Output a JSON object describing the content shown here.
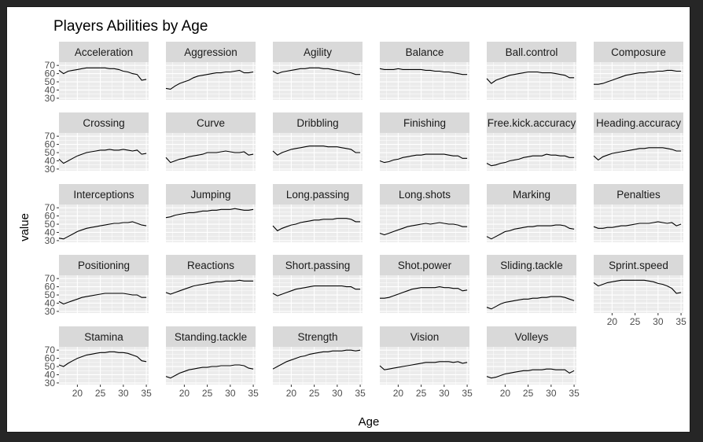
{
  "chart_data": {
    "type": "line",
    "title": "Players Abilities by Age",
    "xlabel": "Age",
    "ylabel": "value",
    "xlim": [
      16,
      35.5
    ],
    "ylim": [
      28,
      74
    ],
    "x_ticks": [
      20,
      25,
      30,
      35
    ],
    "y_ticks": [
      30,
      40,
      50,
      60,
      70
    ],
    "grid": true,
    "x": [
      16,
      17,
      18,
      19,
      20,
      21,
      22,
      23,
      24,
      25,
      26,
      27,
      28,
      29,
      30,
      31,
      32,
      33,
      34,
      35
    ],
    "facets": [
      {
        "name": "Acceleration",
        "values": [
          64,
          60,
          63,
          64,
          65,
          66,
          67,
          67,
          67,
          67,
          67,
          66,
          66,
          65,
          63,
          62,
          60,
          59,
          52,
          53
        ]
      },
      {
        "name": "Aggression",
        "values": [
          42,
          41,
          45,
          48,
          50,
          52,
          55,
          57,
          58,
          59,
          60,
          61,
          61,
          62,
          62,
          63,
          64,
          61,
          61,
          62
        ]
      },
      {
        "name": "Agility",
        "values": [
          63,
          60,
          62,
          63,
          64,
          65,
          66,
          66,
          67,
          67,
          67,
          66,
          66,
          65,
          64,
          63,
          62,
          61,
          59,
          59
        ]
      },
      {
        "name": "Balance",
        "values": [
          66,
          65,
          65,
          65,
          66,
          65,
          65,
          65,
          65,
          65,
          64,
          64,
          63,
          63,
          62,
          62,
          61,
          60,
          59,
          59
        ]
      },
      {
        "name": "Ball.control",
        "values": [
          54,
          48,
          52,
          54,
          56,
          58,
          59,
          60,
          61,
          62,
          62,
          62,
          61,
          61,
          61,
          60,
          59,
          58,
          55,
          55
        ]
      },
      {
        "name": "Composure",
        "values": [
          47,
          47,
          48,
          50,
          52,
          54,
          56,
          58,
          59,
          60,
          61,
          61,
          62,
          62,
          63,
          63,
          64,
          64,
          63,
          63
        ]
      },
      {
        "name": "Crossing",
        "values": [
          42,
          37,
          40,
          43,
          46,
          48,
          50,
          51,
          52,
          53,
          53,
          54,
          53,
          53,
          54,
          53,
          52,
          53,
          48,
          49
        ]
      },
      {
        "name": "Curve",
        "values": [
          44,
          38,
          40,
          42,
          43,
          45,
          46,
          47,
          48,
          50,
          50,
          50,
          51,
          52,
          51,
          50,
          50,
          51,
          47,
          48
        ]
      },
      {
        "name": "Dribbling",
        "values": [
          52,
          47,
          50,
          52,
          54,
          55,
          56,
          57,
          58,
          58,
          58,
          58,
          57,
          57,
          57,
          56,
          55,
          54,
          50,
          50
        ]
      },
      {
        "name": "Finishing",
        "values": [
          40,
          38,
          39,
          41,
          42,
          44,
          45,
          46,
          47,
          47,
          48,
          48,
          48,
          48,
          48,
          47,
          46,
          46,
          43,
          43
        ]
      },
      {
        "name": "Free.kick.accuracy",
        "values": [
          37,
          34,
          35,
          37,
          38,
          40,
          41,
          42,
          44,
          45,
          46,
          46,
          46,
          48,
          47,
          47,
          46,
          46,
          44,
          44
        ]
      },
      {
        "name": "Heading.accuracy",
        "values": [
          46,
          41,
          45,
          47,
          49,
          50,
          51,
          52,
          53,
          54,
          55,
          55,
          56,
          56,
          56,
          56,
          55,
          54,
          52,
          52
        ]
      },
      {
        "name": "Interceptions",
        "values": [
          33,
          32,
          35,
          38,
          41,
          43,
          45,
          46,
          47,
          48,
          49,
          50,
          51,
          51,
          52,
          52,
          53,
          51,
          49,
          48
        ]
      },
      {
        "name": "Jumping",
        "values": [
          58,
          59,
          61,
          62,
          63,
          64,
          64,
          65,
          66,
          66,
          67,
          67,
          68,
          68,
          68,
          69,
          68,
          67,
          67,
          68
        ]
      },
      {
        "name": "Long.passing",
        "values": [
          48,
          42,
          45,
          47,
          49,
          50,
          52,
          53,
          54,
          55,
          55,
          56,
          56,
          56,
          57,
          57,
          57,
          56,
          53,
          53
        ]
      },
      {
        "name": "Long.shots",
        "values": [
          39,
          37,
          39,
          41,
          43,
          45,
          47,
          48,
          49,
          50,
          51,
          50,
          51,
          52,
          51,
          50,
          50,
          49,
          47,
          47
        ]
      },
      {
        "name": "Marking",
        "values": [
          35,
          32,
          35,
          38,
          41,
          42,
          44,
          45,
          46,
          47,
          47,
          48,
          48,
          48,
          48,
          49,
          49,
          48,
          45,
          44
        ]
      },
      {
        "name": "Penalties",
        "values": [
          47,
          45,
          45,
          46,
          46,
          47,
          48,
          48,
          49,
          50,
          51,
          51,
          51,
          52,
          53,
          52,
          51,
          52,
          48,
          50
        ]
      },
      {
        "name": "Positioning",
        "values": [
          42,
          39,
          41,
          43,
          45,
          47,
          48,
          49,
          50,
          51,
          52,
          52,
          52,
          52,
          52,
          51,
          50,
          50,
          47,
          47
        ]
      },
      {
        "name": "Reactions",
        "values": [
          53,
          51,
          53,
          55,
          57,
          59,
          61,
          62,
          63,
          64,
          65,
          66,
          66,
          67,
          67,
          67,
          68,
          67,
          67,
          67
        ]
      },
      {
        "name": "Short.passing",
        "values": [
          52,
          49,
          51,
          53,
          55,
          57,
          58,
          59,
          60,
          61,
          61,
          61,
          61,
          61,
          61,
          61,
          60,
          60,
          57,
          57
        ]
      },
      {
        "name": "Shot.power",
        "values": [
          46,
          46,
          47,
          49,
          51,
          53,
          55,
          57,
          58,
          59,
          59,
          59,
          59,
          60,
          59,
          59,
          58,
          58,
          55,
          56
        ]
      },
      {
        "name": "Sliding.tackle",
        "values": [
          35,
          33,
          36,
          39,
          41,
          42,
          43,
          44,
          45,
          45,
          46,
          46,
          47,
          47,
          48,
          48,
          48,
          47,
          45,
          43
        ]
      },
      {
        "name": "Sprint.speed",
        "values": [
          65,
          61,
          63,
          65,
          66,
          67,
          68,
          68,
          68,
          68,
          68,
          68,
          67,
          66,
          64,
          63,
          61,
          58,
          52,
          53
        ]
      },
      {
        "name": "Stamina",
        "values": [
          52,
          50,
          54,
          57,
          60,
          62,
          64,
          65,
          66,
          67,
          67,
          68,
          68,
          67,
          67,
          66,
          64,
          62,
          57,
          56
        ]
      },
      {
        "name": "Standing.tackle",
        "values": [
          38,
          36,
          39,
          42,
          44,
          46,
          47,
          48,
          49,
          49,
          50,
          50,
          51,
          51,
          51,
          52,
          52,
          51,
          48,
          47
        ]
      },
      {
        "name": "Strength",
        "values": [
          47,
          50,
          53,
          56,
          58,
          60,
          62,
          63,
          65,
          66,
          67,
          68,
          68,
          69,
          69,
          69,
          70,
          70,
          69,
          70
        ]
      },
      {
        "name": "Vision",
        "values": [
          51,
          46,
          47,
          48,
          49,
          50,
          51,
          52,
          53,
          54,
          55,
          55,
          55,
          56,
          56,
          56,
          55,
          56,
          54,
          55
        ]
      },
      {
        "name": "Volleys",
        "values": [
          38,
          36,
          37,
          39,
          41,
          42,
          43,
          44,
          45,
          45,
          46,
          46,
          46,
          47,
          47,
          46,
          46,
          46,
          42,
          45
        ]
      }
    ]
  },
  "colors": {
    "panel_bg": "#ebebeb",
    "strip_bg": "#d9d9d9",
    "grid_major": "#ffffff",
    "line": "#000000"
  }
}
